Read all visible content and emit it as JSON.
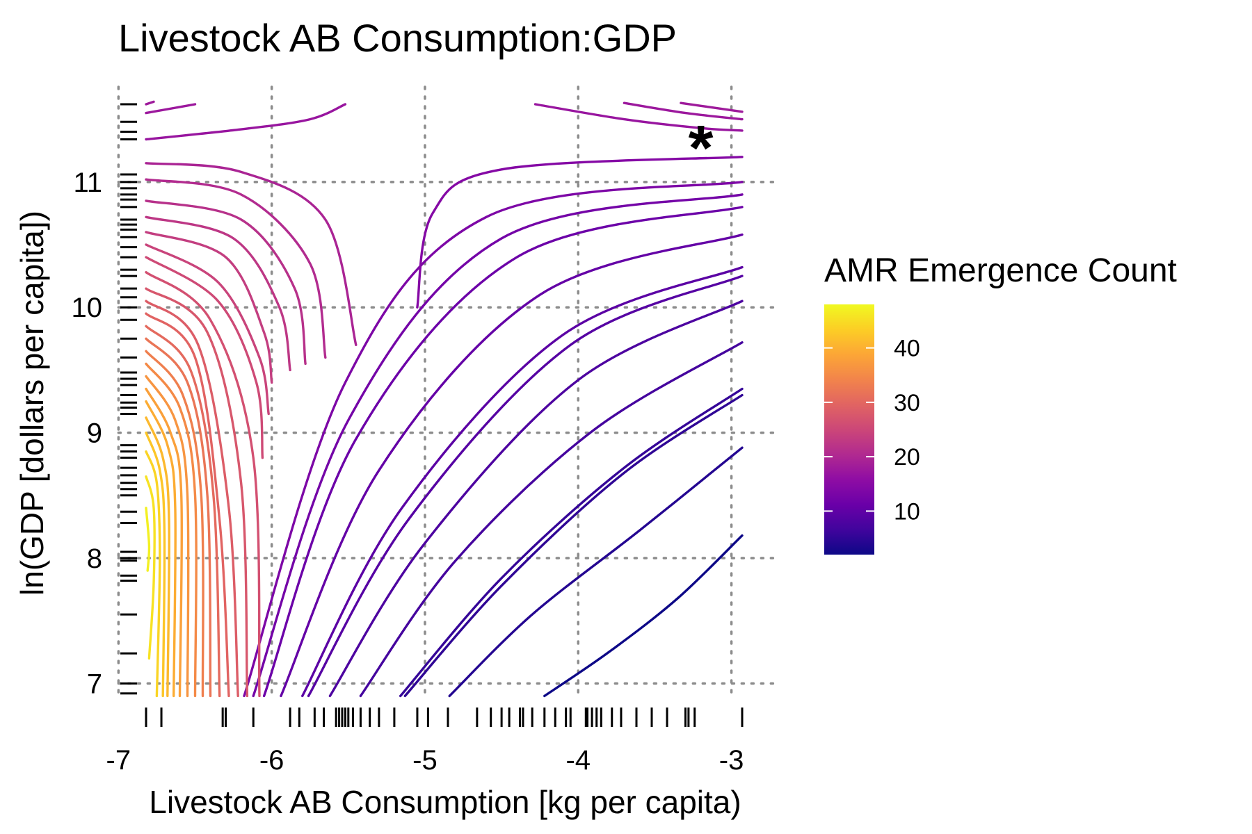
{
  "chart_data": {
    "type": "contour",
    "title": "Livestock AB Consumption:GDP",
    "xlabel": "Livestock AB Consumption [kg per capita)",
    "ylabel": "ln(GDP [dollars per capita])",
    "xlim": [
      -6.82,
      -2.93
    ],
    "ylim": [
      6.88,
      11.62
    ],
    "x_ticks": [
      -7,
      -6,
      -5,
      -4,
      -3
    ],
    "x_tick_labels": [
      "-7",
      "-6",
      "-5",
      "-4",
      "-3"
    ],
    "y_ticks": [
      7,
      8,
      9,
      10,
      11
    ],
    "y_tick_labels": [
      "7",
      "8",
      "9",
      "10",
      "11"
    ],
    "grid": true,
    "grid_style": "dotted",
    "colorscale": "plasma",
    "legend": {
      "title": "AMR Emergence Count",
      "placement": "right",
      "range": [
        2,
        48
      ],
      "ticks": [
        10,
        20,
        30,
        40
      ],
      "tick_labels": [
        "10",
        "20",
        "30",
        "40"
      ],
      "colors": [
        "#0d0887",
        "#41049d",
        "#6a00a8",
        "#8f0da4",
        "#b12a90",
        "#cc4778",
        "#e16462",
        "#f2844b",
        "#fca636",
        "#fcce25",
        "#f0f921"
      ]
    },
    "marker": {
      "text": "*",
      "x": -3.2,
      "y": 11.33
    },
    "rug_x": [
      -6.82,
      -6.72,
      -6.32,
      -6.3,
      -6.12,
      -5.88,
      -5.82,
      -5.72,
      -5.66,
      -5.58,
      -5.56,
      -5.54,
      -5.52,
      -5.5,
      -5.47,
      -5.42,
      -5.36,
      -5.3,
      -5.2,
      -5.05,
      -4.98,
      -4.85,
      -4.66,
      -4.57,
      -4.5,
      -4.45,
      -4.38,
      -4.36,
      -4.3,
      -4.22,
      -4.15,
      -4.08,
      -4.05,
      -3.95,
      -3.94,
      -3.91,
      -3.88,
      -3.85,
      -3.78,
      -3.72,
      -3.62,
      -3.52,
      -3.42,
      -3.3,
      -3.28,
      -3.24,
      -2.93
    ],
    "rug_y": [
      6.92,
      7.0,
      7.24,
      7.55,
      7.82,
      7.86,
      7.98,
      8.0,
      8.05,
      8.28,
      8.37,
      8.5,
      8.55,
      8.6,
      8.66,
      8.72,
      8.8,
      8.85,
      8.9,
      9.15,
      9.2,
      9.24,
      9.3,
      9.38,
      9.43,
      9.48,
      9.6,
      9.75,
      9.9,
      10.0,
      10.08,
      10.15,
      10.25,
      10.3,
      10.4,
      10.48,
      10.56,
      10.62,
      10.66,
      10.7,
      10.8,
      10.86,
      10.9,
      10.95,
      11.0,
      11.06,
      11.34,
      11.4,
      11.48,
      11.62
    ],
    "contours": [
      {
        "level": 2,
        "points": [
          [
            -4.22,
            6.9
          ],
          [
            -3.8,
            7.25
          ],
          [
            -3.35,
            7.68
          ],
          [
            -2.93,
            8.18
          ]
        ]
      },
      {
        "level": 4,
        "points": [
          [
            -4.84,
            6.9
          ],
          [
            -4.3,
            7.55
          ],
          [
            -3.6,
            8.22
          ],
          [
            -2.93,
            8.88
          ]
        ]
      },
      {
        "level": 5,
        "points": [
          [
            -5.13,
            6.9
          ],
          [
            -4.5,
            7.78
          ],
          [
            -3.7,
            8.68
          ],
          [
            -2.93,
            9.3
          ]
        ]
      },
      {
        "level": 5.5,
        "points": [
          [
            -5.16,
            6.9
          ],
          [
            -4.5,
            7.84
          ],
          [
            -3.7,
            8.72
          ],
          [
            -2.93,
            9.35
          ]
        ]
      },
      {
        "level": 7,
        "points": [
          [
            -5.42,
            6.9
          ],
          [
            -4.8,
            7.98
          ],
          [
            -3.9,
            9.02
          ],
          [
            -2.93,
            9.72
          ]
        ]
      },
      {
        "level": 8,
        "points": [
          [
            -5.62,
            6.9
          ],
          [
            -5.0,
            8.12
          ],
          [
            -4.0,
            9.42
          ],
          [
            -2.93,
            10.05
          ]
        ]
      },
      {
        "level": 9,
        "points": [
          [
            -5.76,
            6.9
          ],
          [
            -5.1,
            8.32
          ],
          [
            -4.05,
            9.7
          ],
          [
            -2.93,
            10.25
          ]
        ]
      },
      {
        "level": 9.5,
        "points": [
          [
            -5.8,
            6.9
          ],
          [
            -5.15,
            8.4
          ],
          [
            -4.1,
            9.78
          ],
          [
            -2.93,
            10.32
          ]
        ]
      },
      {
        "level": 10.5,
        "points": [
          [
            -5.94,
            6.9
          ],
          [
            -5.3,
            8.7
          ],
          [
            -4.25,
            10.1
          ],
          [
            -2.93,
            10.58
          ]
        ]
      },
      {
        "level": 11.5,
        "points": [
          [
            -6.05,
            6.9
          ],
          [
            -5.45,
            8.95
          ],
          [
            -4.4,
            10.4
          ],
          [
            -2.93,
            10.8
          ]
        ]
      },
      {
        "level": 12.5,
        "points": [
          [
            -6.12,
            6.9
          ],
          [
            -5.5,
            9.1
          ],
          [
            -4.5,
            10.55
          ],
          [
            -2.93,
            10.9
          ]
        ]
      },
      {
        "level": 13.5,
        "points": [
          [
            -6.18,
            6.9
          ],
          [
            -5.52,
            9.4
          ],
          [
            -4.6,
            10.72
          ],
          [
            -2.93,
            11.0
          ]
        ]
      },
      {
        "level": 14.5,
        "points": [
          [
            -5.05,
            10.0
          ],
          [
            -4.95,
            10.75
          ],
          [
            -4.5,
            11.1
          ],
          [
            -2.93,
            11.2
          ]
        ]
      },
      {
        "level": 19.5,
        "points": [
          [
            -6.82,
            11.15
          ],
          [
            -6.2,
            11.08
          ],
          [
            -5.65,
            10.7
          ],
          [
            -5.45,
            9.7
          ]
        ]
      },
      {
        "level": 20.5,
        "points": [
          [
            -6.82,
            11.02
          ],
          [
            -6.2,
            10.9
          ],
          [
            -5.75,
            10.35
          ],
          [
            -5.65,
            9.6
          ]
        ]
      },
      {
        "level": 21.5,
        "points": [
          [
            -6.82,
            10.85
          ],
          [
            -6.2,
            10.7
          ],
          [
            -5.85,
            10.15
          ],
          [
            -5.78,
            9.55
          ]
        ]
      },
      {
        "level": 22.5,
        "points": [
          [
            -6.82,
            10.72
          ],
          [
            -6.25,
            10.55
          ],
          [
            -5.95,
            10.0
          ],
          [
            -5.88,
            9.5
          ]
        ]
      },
      {
        "level": 23.5,
        "points": [
          [
            -6.82,
            10.6
          ],
          [
            -6.3,
            10.4
          ],
          [
            -6.05,
            9.8
          ],
          [
            -6.0,
            9.4
          ]
        ]
      },
      {
        "level": 24.5,
        "points": [
          [
            -6.82,
            10.5
          ],
          [
            -6.35,
            10.2
          ],
          [
            -6.08,
            9.6
          ],
          [
            -6.02,
            9.15
          ]
        ]
      },
      {
        "level": 25.5,
        "points": [
          [
            -6.82,
            10.4
          ],
          [
            -6.35,
            10.05
          ],
          [
            -6.1,
            9.4
          ],
          [
            -6.06,
            8.8
          ]
        ]
      },
      {
        "level": 26.5,
        "points": [
          [
            -6.82,
            10.28
          ],
          [
            -6.4,
            9.9
          ],
          [
            -6.12,
            8.8
          ],
          [
            -6.08,
            6.9
          ]
        ]
      },
      {
        "level": 27.5,
        "points": [
          [
            -6.82,
            10.15
          ],
          [
            -6.42,
            9.8
          ],
          [
            -6.2,
            8.6
          ],
          [
            -6.16,
            6.9
          ]
        ]
      },
      {
        "level": 28.5,
        "points": [
          [
            -6.82,
            10.05
          ],
          [
            -6.48,
            9.7
          ],
          [
            -6.28,
            8.4
          ],
          [
            -6.22,
            6.9
          ]
        ]
      },
      {
        "level": 29.5,
        "points": [
          [
            -6.82,
            9.95
          ],
          [
            -6.5,
            9.6
          ],
          [
            -6.34,
            8.3
          ],
          [
            -6.28,
            6.9
          ]
        ]
      },
      {
        "level": 30.5,
        "points": [
          [
            -6.82,
            9.85
          ],
          [
            -6.53,
            9.5
          ],
          [
            -6.38,
            8.5
          ],
          [
            -6.34,
            6.9
          ]
        ]
      },
      {
        "level": 32,
        "points": [
          [
            -6.82,
            9.75
          ],
          [
            -6.55,
            9.4
          ],
          [
            -6.42,
            8.5
          ],
          [
            -6.4,
            6.9
          ]
        ]
      },
      {
        "level": 33.5,
        "points": [
          [
            -6.82,
            9.65
          ],
          [
            -6.58,
            9.3
          ],
          [
            -6.46,
            8.5
          ],
          [
            -6.45,
            6.9
          ]
        ]
      },
      {
        "level": 35,
        "points": [
          [
            -6.82,
            9.55
          ],
          [
            -6.6,
            9.2
          ],
          [
            -6.5,
            8.5
          ],
          [
            -6.5,
            6.9
          ]
        ]
      },
      {
        "level": 36.5,
        "points": [
          [
            -6.82,
            9.45
          ],
          [
            -6.63,
            9.1
          ],
          [
            -6.55,
            8.5
          ],
          [
            -6.55,
            6.9
          ]
        ]
      },
      {
        "level": 38,
        "points": [
          [
            -6.82,
            9.35
          ],
          [
            -6.66,
            9.0
          ],
          [
            -6.59,
            8.5
          ],
          [
            -6.6,
            6.9
          ]
        ]
      },
      {
        "level": 39.5,
        "points": [
          [
            -6.82,
            9.25
          ],
          [
            -6.68,
            8.9
          ],
          [
            -6.63,
            8.4
          ],
          [
            -6.64,
            6.9
          ]
        ]
      },
      {
        "level": 41,
        "points": [
          [
            -6.82,
            9.12
          ],
          [
            -6.71,
            8.8
          ],
          [
            -6.67,
            8.3
          ],
          [
            -6.68,
            6.9
          ]
        ]
      },
      {
        "level": 42.5,
        "points": [
          [
            -6.82,
            9.0
          ],
          [
            -6.73,
            8.7
          ],
          [
            -6.7,
            8.2
          ],
          [
            -6.71,
            6.9
          ]
        ]
      },
      {
        "level": 44,
        "points": [
          [
            -6.82,
            8.85
          ],
          [
            -6.75,
            8.6
          ],
          [
            -6.73,
            8.0
          ],
          [
            -6.75,
            6.9
          ]
        ]
      },
      {
        "level": 45.5,
        "points": [
          [
            -6.82,
            8.65
          ],
          [
            -6.77,
            8.4
          ],
          [
            -6.77,
            7.8
          ],
          [
            -6.8,
            7.2
          ]
        ]
      },
      {
        "level": 47,
        "points": [
          [
            -6.82,
            8.4
          ],
          [
            -6.8,
            8.1
          ],
          [
            -6.81,
            7.9
          ]
        ]
      },
      {
        "level": 17,
        "points": [
          [
            -6.82,
            11.34
          ],
          [
            -6.2,
            11.42
          ],
          [
            -5.75,
            11.5
          ],
          [
            -5.52,
            11.62
          ]
        ]
      },
      {
        "level": 17.5,
        "points": [
          [
            -6.82,
            11.55
          ],
          [
            -6.5,
            11.62
          ]
        ]
      },
      {
        "level": 17.8,
        "points": [
          [
            -6.82,
            11.62
          ],
          [
            -6.77,
            11.64
          ]
        ]
      },
      {
        "level": 17,
        "points": [
          [
            -4.28,
            11.62
          ],
          [
            -3.7,
            11.5
          ],
          [
            -3.2,
            11.43
          ],
          [
            -2.93,
            11.41
          ]
        ]
      },
      {
        "level": 17.5,
        "points": [
          [
            -3.7,
            11.63
          ],
          [
            -3.3,
            11.55
          ],
          [
            -2.93,
            11.5
          ]
        ]
      },
      {
        "level": 17.8,
        "points": [
          [
            -3.33,
            11.63
          ],
          [
            -3.1,
            11.59
          ],
          [
            -2.93,
            11.56
          ]
        ]
      }
    ]
  }
}
